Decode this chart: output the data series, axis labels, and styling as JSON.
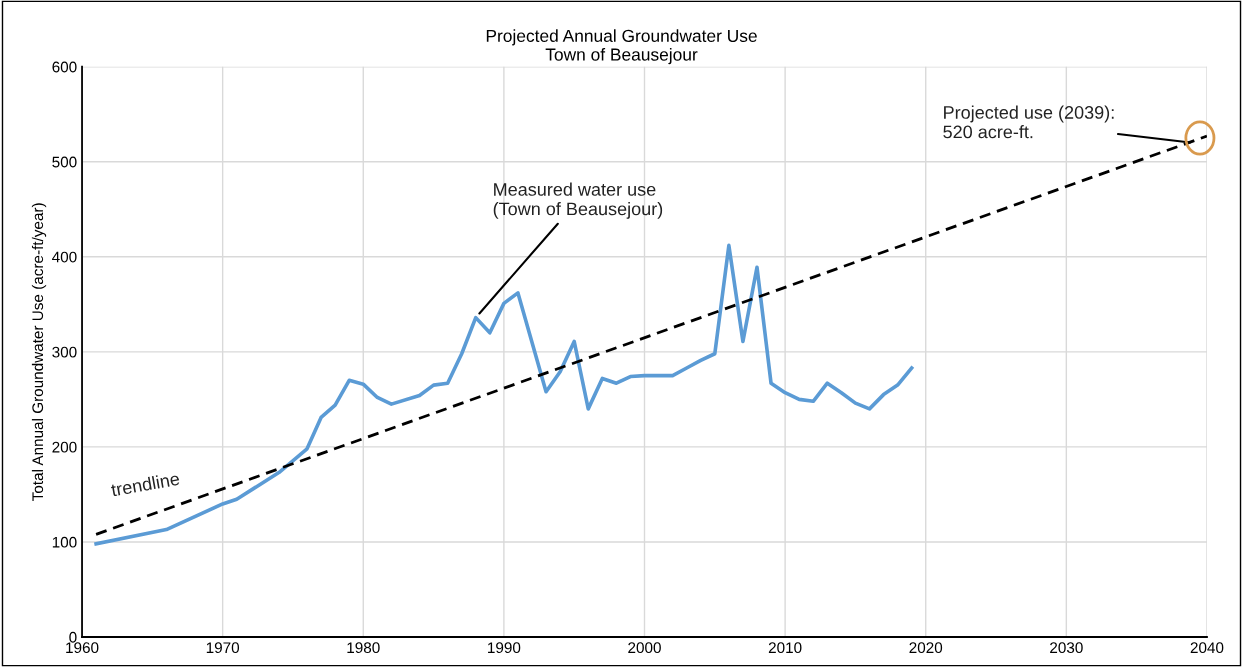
{
  "chart_data": {
    "type": "line",
    "title": "Projected Annual Groundwater Use\nTown of Beausejour",
    "ylabel": "Total Annual Groundwater Use (acre-ft/year)",
    "xlim": [
      1960,
      2040
    ],
    "xticks": [
      1960,
      1970,
      1980,
      1990,
      2000,
      2010,
      2020,
      2030,
      2040
    ],
    "ylim": [
      0,
      600
    ],
    "yticks": [
      0,
      100,
      200,
      300,
      400,
      500,
      600
    ],
    "grid": true,
    "series": [
      {
        "name": "Measured water use\n(Town of Beausejour)",
        "color": "#5b9bd5",
        "line_style": "solid",
        "x": [
          1961,
          1966,
          1970,
          1971,
          1974,
          1976,
          1977,
          1978,
          1979,
          1980,
          1981,
          1982,
          1984,
          1985,
          1986,
          1987,
          1988,
          1989,
          1990,
          1991,
          1993,
          1994,
          1995,
          1996,
          1997,
          1998,
          1999,
          2000,
          2002,
          2003,
          2004,
          2005,
          2006,
          2007,
          2008,
          2009,
          2010,
          2011,
          2012,
          2013,
          2014,
          2015,
          2016,
          2017,
          2018,
          2019
        ],
        "values": [
          98,
          113,
          140,
          145,
          173,
          198,
          231,
          244,
          270,
          266,
          252,
          245,
          254,
          265,
          267,
          298,
          336,
          320,
          351,
          362,
          258,
          279,
          311,
          240,
          272,
          267,
          274,
          275,
          275,
          283,
          291,
          298,
          412,
          311,
          389,
          267,
          257,
          250,
          248,
          267,
          257,
          246,
          240,
          255,
          265,
          283
        ]
      },
      {
        "name": "trendline",
        "color": "#000000",
        "line_style": "dashed",
        "x": [
          1961,
          2040
        ],
        "values": [
          108,
          527
        ]
      }
    ],
    "annotations": [
      {
        "text": "Projected use (2039):\n520 acre-ft.",
        "x": 2039,
        "y": 520
      }
    ]
  }
}
